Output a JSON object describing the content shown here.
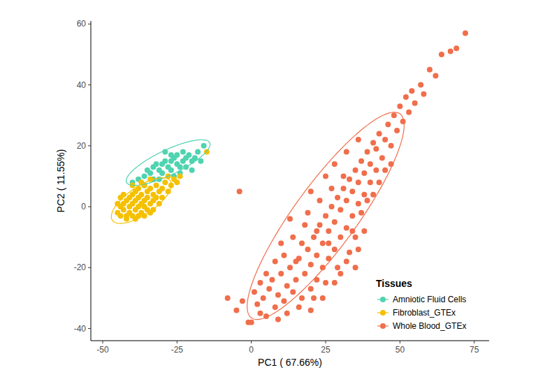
{
  "chart_data": {
    "type": "scatter",
    "x_label": "PC1 ( 67.66%)",
    "y_label": "PC2 ( 11.55%)",
    "legend_title": "Tissues",
    "legend": "bottom-right",
    "grid": false,
    "marker": "circle",
    "xlim": [
      -54,
      80
    ],
    "ylim": [
      -44,
      61
    ],
    "xticks": [
      -50,
      -25,
      0,
      25,
      50,
      75
    ],
    "yticks": [
      -40,
      -20,
      0,
      20,
      40,
      60
    ],
    "series": [
      {
        "name": "Amniotic Fluid Cells",
        "color": "#4fd3b0",
        "ellipse": {
          "center": [
            -28,
            14.5
          ],
          "axis1": [
            14,
            6.5
          ],
          "axis2": [
            1.8,
            -3.7
          ]
        },
        "x": [
          -40,
          -38,
          -36,
          -35,
          -34,
          -33,
          -32,
          -31,
          -30,
          -30,
          -29,
          -28,
          -27,
          -27,
          -26,
          -25,
          -25,
          -24,
          -23,
          -22,
          -22,
          -21,
          -20,
          -19,
          -18,
          -17,
          -16,
          -29,
          -27,
          -24,
          -33,
          -36,
          -31,
          -26,
          -20,
          -23
        ],
        "values": [
          8,
          9,
          10,
          12,
          11,
          13,
          14,
          12,
          14,
          11,
          15,
          13,
          15,
          12,
          16,
          14,
          17,
          13,
          15,
          16,
          13,
          17,
          15,
          16,
          18,
          15,
          20,
          18,
          17,
          11,
          9,
          7,
          9,
          10,
          12,
          18
        ]
      },
      {
        "name": "Fibroblast_GTEx",
        "color": "#f5c000",
        "ellipse": {
          "center": [
            -37,
            2
          ],
          "axis1": [
            10,
            6
          ],
          "axis2": [
            1.5,
            -4.5
          ]
        },
        "x": [
          -45,
          -44,
          -44,
          -43,
          -43,
          -42,
          -42,
          -42,
          -41,
          -41,
          -41,
          -40,
          -40,
          -40,
          -39,
          -39,
          -39,
          -38,
          -38,
          -38,
          -38,
          -37,
          -37,
          -37,
          -36,
          -36,
          -36,
          -35,
          -35,
          -35,
          -34,
          -34,
          -34,
          -33,
          -33,
          -32,
          -32,
          -31,
          -31,
          -30,
          -30,
          -29,
          -28,
          -27,
          -26,
          -25,
          -24,
          -43,
          -40,
          -37,
          -39,
          -36,
          -33,
          -45,
          -44,
          -15,
          -28,
          -34
        ],
        "values": [
          -2,
          0,
          -3,
          1,
          -1,
          2,
          -3,
          -4,
          0,
          3,
          -2,
          1,
          -3,
          4,
          -1,
          2,
          5,
          0,
          -3,
          3,
          6,
          1,
          -2,
          4,
          0,
          2,
          7,
          -1,
          3,
          5,
          1,
          6,
          -2,
          2,
          4,
          3,
          7,
          5,
          1,
          6,
          3,
          8,
          5,
          7,
          9,
          8,
          10,
          4,
          7,
          8,
          -4,
          -3,
          -1,
          1,
          3,
          18,
          10,
          9
        ]
      },
      {
        "name": "Whole Blood_GTEx",
        "color": "#f06e4b",
        "ellipse": {
          "center": [
            25,
            -3
          ],
          "axis1": [
            25,
            33.5
          ],
          "axis2": [
            8.5,
            -6
          ]
        },
        "x": [
          -4,
          -8,
          -1,
          0,
          -5,
          2,
          3,
          5,
          1,
          4,
          6,
          8,
          7,
          9,
          10,
          11,
          12,
          13,
          14,
          15,
          16,
          17,
          18,
          19,
          20,
          20,
          21,
          22,
          22,
          23,
          24,
          24,
          25,
          26,
          26,
          27,
          28,
          28,
          29,
          30,
          30,
          31,
          32,
          32,
          33,
          34,
          34,
          35,
          36,
          36,
          37,
          38,
          38,
          39,
          40,
          40,
          41,
          42,
          42,
          43,
          44,
          45,
          46,
          47,
          48,
          49,
          50,
          51,
          52,
          53,
          54,
          55,
          57,
          58,
          60,
          62,
          64,
          67,
          69,
          72,
          10,
          12,
          14,
          16,
          18,
          21,
          23,
          25,
          27,
          29,
          31,
          33,
          35,
          15,
          19,
          22,
          26,
          30,
          34,
          37,
          39,
          41,
          43,
          45,
          47,
          5,
          8,
          3,
          -3,
          11,
          17,
          13,
          20,
          25,
          28,
          32,
          36,
          24,
          20,
          28,
          32,
          36,
          38,
          9,
          35
        ],
        "values": [
          5,
          -30,
          -38,
          -38,
          -34,
          -32,
          -35,
          -36,
          -28,
          -30,
          -27,
          -33,
          -24,
          -29,
          -22,
          -31,
          -26,
          -20,
          -28,
          -24,
          -17,
          -30,
          -22,
          -14,
          -27,
          -19,
          -10,
          -24,
          -16,
          -6,
          -20,
          -12,
          -3,
          -17,
          -8,
          0,
          -14,
          -5,
          3,
          -10,
          -1,
          6,
          -7,
          2,
          9,
          -3,
          5,
          12,
          1,
          8,
          15,
          4,
          11,
          18,
          8,
          14,
          21,
          12,
          19,
          24,
          16,
          22,
          27,
          20,
          30,
          25,
          33,
          28,
          36,
          31,
          38,
          34,
          40,
          37,
          45,
          43,
          50,
          51,
          52,
          57,
          -12,
          -35,
          -10,
          -33,
          -6,
          -30,
          2,
          -25,
          6,
          -20,
          10,
          -15,
          -10,
          -18,
          -2,
          -8,
          -12,
          -22,
          -8,
          -2,
          2,
          4,
          8,
          12,
          14,
          -22,
          -18,
          -25,
          -31,
          -16,
          -12,
          -4,
          5,
          10,
          14,
          18,
          22,
          -30,
          -34,
          -25,
          -18,
          -14,
          -8,
          -37,
          -20
        ]
      }
    ]
  }
}
